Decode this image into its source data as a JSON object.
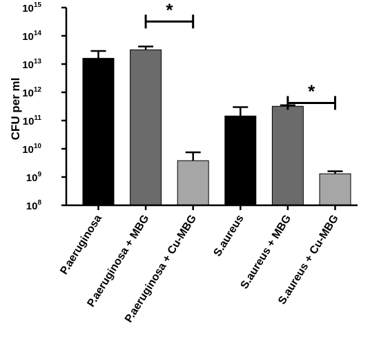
{
  "chart_data": {
    "type": "bar",
    "title": "",
    "xlabel": "",
    "ylabel": "CFU per ml",
    "yscale": "log",
    "ylim": [
      100000000.0,
      1000000000000000.0
    ],
    "y_ticks": [
      {
        "base": "10",
        "exp": "8",
        "value": 100000000.0
      },
      {
        "base": "10",
        "exp": "9",
        "value": 1000000000.0
      },
      {
        "base": "10",
        "exp": "10",
        "value": 10000000000.0
      },
      {
        "base": "10",
        "exp": "11",
        "value": 100000000000.0
      },
      {
        "base": "10",
        "exp": "12",
        "value": 1000000000000.0
      },
      {
        "base": "10",
        "exp": "13",
        "value": 10000000000000.0
      },
      {
        "base": "10",
        "exp": "14",
        "value": 100000000000000.0
      },
      {
        "base": "10",
        "exp": "15",
        "value": 1000000000000000.0
      }
    ],
    "categories": [
      "P.aeruginosa",
      "P.aeruginosa + MBG",
      "P.aeruginosa + Cu-MBG",
      "S.aureus",
      "S.aureus + MBG",
      "S.aureus + Cu-MBG"
    ],
    "values": [
      16000000000000.0,
      32000000000000.0,
      3800000000.0,
      145000000000.0,
      320000000000.0,
      1300000000.0
    ],
    "error_upper": [
      29000000000000.0,
      42000000000000.0,
      7500000000.0,
      300000000000.0,
      350000000000.0,
      1600000000.0
    ],
    "colors": [
      "#000000",
      "#6b6b6b",
      "#a6a6a6",
      "#000000",
      "#6b6b6b",
      "#a6a6a6"
    ],
    "grid": false,
    "legend": "none",
    "significance": [
      {
        "from": 1,
        "to": 2,
        "label": "*",
        "y": 320000000000000.0
      },
      {
        "from": 4,
        "to": 5,
        "label": "*",
        "y": 420000000000.0
      }
    ]
  }
}
